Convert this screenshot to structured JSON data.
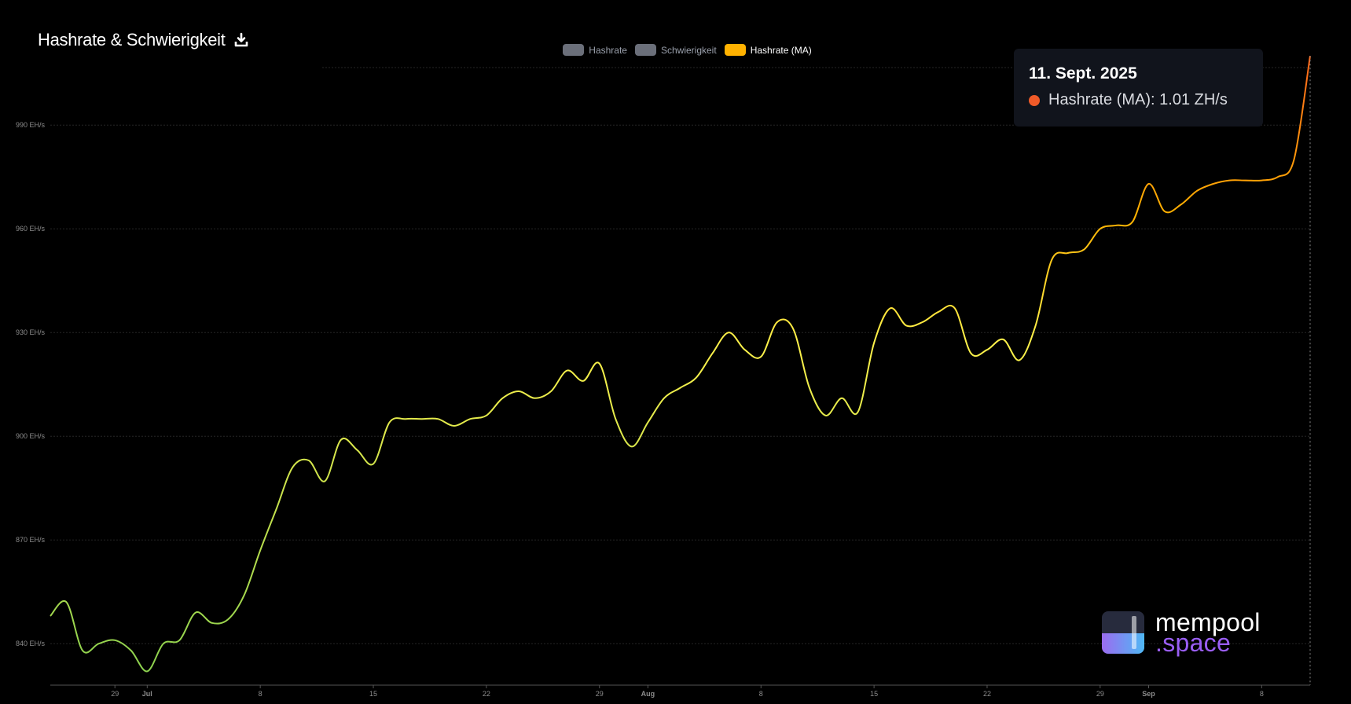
{
  "header": {
    "title": "Hashrate & Schwierigkeit",
    "download_icon": "download-icon"
  },
  "legend": [
    {
      "label": "Hashrate",
      "color": "#6b6f7a",
      "active": false
    },
    {
      "label": "Schwierigkeit",
      "color": "#6b6f7a",
      "active": false
    },
    {
      "label": "Hashrate (MA)",
      "color": "#ffb200",
      "active": true
    }
  ],
  "tooltip": {
    "date": "11. Sept. 2025",
    "series": "Hashrate (MA)",
    "value": "1.01 ZH/s",
    "text": "Hashrate (MA): 1.01 ZH/s",
    "dot_color": "#f05a28"
  },
  "branding": {
    "line1": "mempool",
    "line2": ".space"
  },
  "colors": {
    "background": "#000000",
    "line_start": "#8bd14f",
    "line_mid": "#fff24a",
    "line_end": "#ff7a1f"
  },
  "chart_data": {
    "type": "line",
    "series": [
      {
        "name": "Hashrate (MA)",
        "x": [
          "2025-06-25",
          "2025-06-26",
          "2025-06-27",
          "2025-06-28",
          "2025-06-29",
          "2025-06-30",
          "2025-07-01",
          "2025-07-02",
          "2025-07-03",
          "2025-07-04",
          "2025-07-05",
          "2025-07-06",
          "2025-07-07",
          "2025-07-08",
          "2025-07-09",
          "2025-07-10",
          "2025-07-11",
          "2025-07-12",
          "2025-07-13",
          "2025-07-14",
          "2025-07-15",
          "2025-07-16",
          "2025-07-17",
          "2025-07-18",
          "2025-07-19",
          "2025-07-20",
          "2025-07-21",
          "2025-07-22",
          "2025-07-23",
          "2025-07-24",
          "2025-07-25",
          "2025-07-26",
          "2025-07-27",
          "2025-07-28",
          "2025-07-29",
          "2025-07-30",
          "2025-07-31",
          "2025-08-01",
          "2025-08-02",
          "2025-08-03",
          "2025-08-04",
          "2025-08-05",
          "2025-08-06",
          "2025-08-07",
          "2025-08-08",
          "2025-08-09",
          "2025-08-10",
          "2025-08-11",
          "2025-08-12",
          "2025-08-13",
          "2025-08-14",
          "2025-08-15",
          "2025-08-16",
          "2025-08-17",
          "2025-08-18",
          "2025-08-19",
          "2025-08-20",
          "2025-08-21",
          "2025-08-22",
          "2025-08-23",
          "2025-08-24",
          "2025-08-25",
          "2025-08-26",
          "2025-08-27",
          "2025-08-28",
          "2025-08-29",
          "2025-08-30",
          "2025-08-31",
          "2025-09-01",
          "2025-09-02",
          "2025-09-03",
          "2025-09-04",
          "2025-09-05",
          "2025-09-06",
          "2025-09-07",
          "2025-09-08",
          "2025-09-09",
          "2025-09-10",
          "2025-09-11"
        ],
        "values": [
          848,
          852,
          838,
          840,
          841,
          838,
          832,
          840,
          841,
          849,
          846,
          847,
          854,
          867,
          879,
          891,
          893,
          887,
          899,
          896,
          892,
          904,
          905,
          905,
          905,
          903,
          905,
          906,
          911,
          913,
          911,
          913,
          919,
          916,
          921,
          905,
          897,
          904,
          911,
          914,
          917,
          924,
          930,
          925,
          923,
          933,
          931,
          914,
          906,
          911,
          907,
          927,
          937,
          932,
          933,
          936,
          937,
          924,
          925,
          928,
          922,
          932,
          951,
          953,
          954,
          960,
          961,
          962,
          973,
          965,
          967,
          971,
          973,
          974,
          974,
          974,
          975,
          980,
          1010
        ]
      }
    ],
    "xticks": [
      "29",
      "Jul",
      "8",
      "15",
      "22",
      "29",
      "Aug",
      "8",
      "15",
      "22",
      "29",
      "Sep",
      "8"
    ],
    "yticks": [
      "840 EH/s",
      "870 EH/s",
      "900 EH/s",
      "930 EH/s",
      "960 EH/s",
      "990 EH/s"
    ],
    "ylim": [
      828,
      1008
    ],
    "grid": true,
    "legend_position": "top-center"
  }
}
